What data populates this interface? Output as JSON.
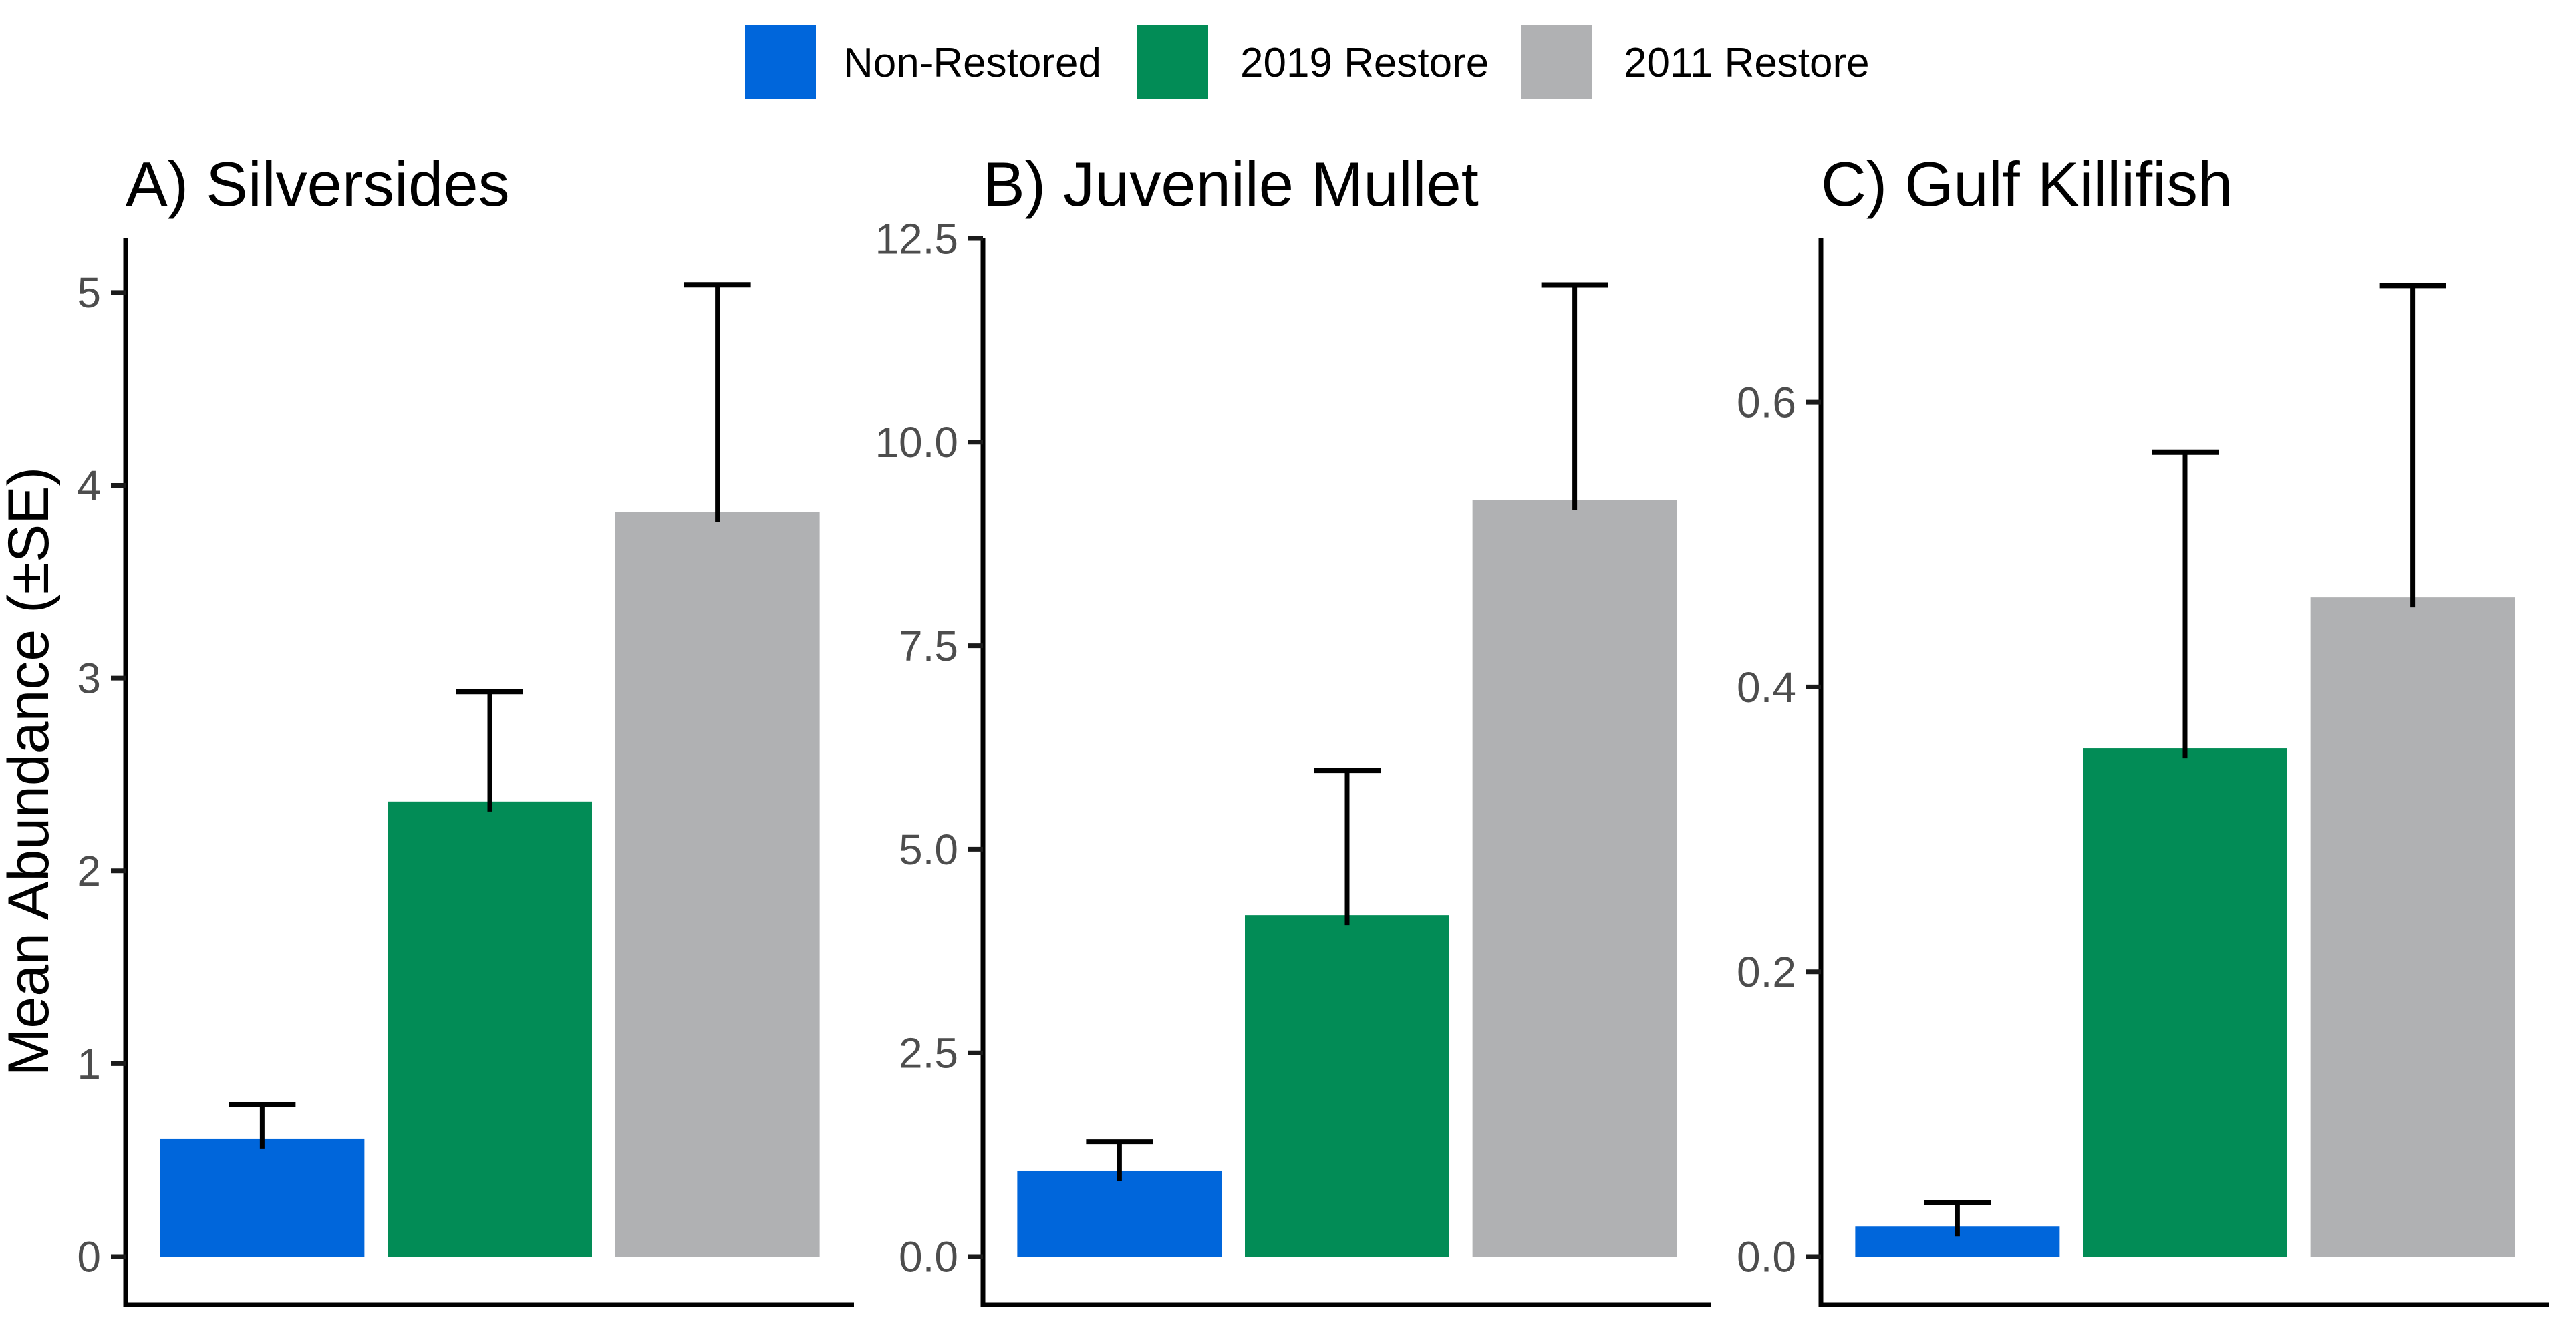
{
  "figure": {
    "background": "#ffffff"
  },
  "legend": {
    "items": [
      {
        "label": "Non-Restored",
        "color": "#0066DB"
      },
      {
        "label": "2019 Restore",
        "color": "#028C56"
      },
      {
        "label": "2011 Restore",
        "color": "#B0B1B3"
      }
    ]
  },
  "ylabel": "Mean Abundance (±SE)",
  "colors": {
    "axis_line": "#000000",
    "tick_mark": "#1A1A1A",
    "tick_label": "#4D4D4D",
    "error_bar": "#000000"
  },
  "chart_data": [
    {
      "type": "bar",
      "title": "A) Silversides",
      "categories": [
        "Non-Restored",
        "2019 Restore",
        "2011 Restore"
      ],
      "values": [
        0.61,
        2.36,
        3.86
      ],
      "se": [
        0.18,
        0.57,
        1.18
      ],
      "error_bar_tops": [
        0.79,
        2.93,
        5.04
      ],
      "yticks": [
        "0",
        "1",
        "2",
        "3",
        "4",
        "5"
      ],
      "ytick_values": [
        0,
        1,
        2,
        3,
        4,
        5
      ],
      "ylim": [
        0,
        5.28
      ],
      "grid": "off",
      "xlabel": "",
      "ylabel": "Mean Abundance (±SE)"
    },
    {
      "type": "bar",
      "title": "B) Juvenile Mullet",
      "categories": [
        "Non-Restored",
        "2019 Restore",
        "2011 Restore"
      ],
      "values": [
        1.05,
        4.19,
        9.29
      ],
      "se": [
        0.36,
        1.78,
        2.64
      ],
      "error_bar_tops": [
        1.41,
        5.97,
        11.93
      ],
      "yticks": [
        "0.0",
        "2.5",
        "5.0",
        "7.5",
        "10.0",
        "12.5"
      ],
      "ytick_values": [
        0,
        2.5,
        5,
        7.5,
        10,
        12.5
      ],
      "ylim": [
        0,
        12.5
      ],
      "grid": "off",
      "xlabel": "",
      "ylabel": ""
    },
    {
      "type": "bar",
      "title": "C) Gulf Killifish",
      "categories": [
        "Non-Restored",
        "2019 Restore",
        "2011 Restore"
      ],
      "values": [
        0.021,
        0.357,
        0.463
      ],
      "se": [
        0.017,
        0.208,
        0.219
      ],
      "error_bar_tops": [
        0.038,
        0.565,
        0.682
      ],
      "yticks": [
        "0.0",
        "0.2",
        "0.4",
        "0.6"
      ],
      "ytick_values": [
        0,
        0.2,
        0.4,
        0.6
      ],
      "ylim": [
        0,
        0.715
      ],
      "grid": "off",
      "xlabel": "",
      "ylabel": ""
    }
  ]
}
